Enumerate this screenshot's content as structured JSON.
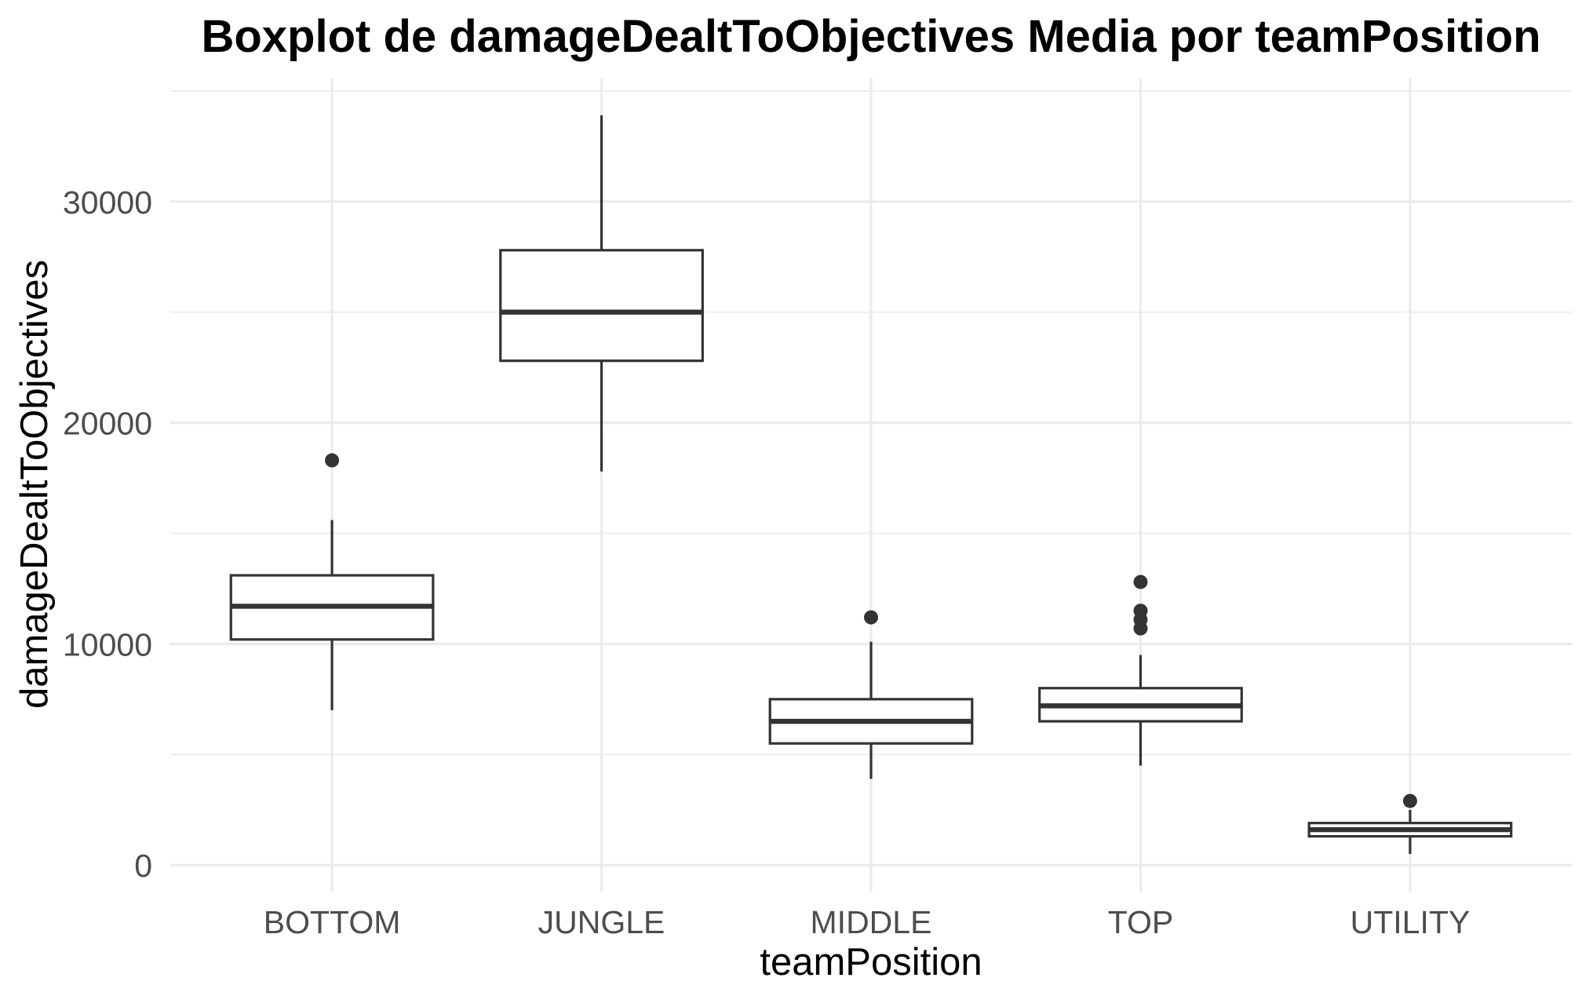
{
  "chart_data": {
    "type": "boxplot",
    "title": "Boxplot de damageDealtToObjectives Media por teamPosition",
    "xlabel": "teamPosition",
    "ylabel": "damageDealtToObjectives",
    "categories": [
      "BOTTOM",
      "JUNGLE",
      "MIDDLE",
      "TOP",
      "UTILITY"
    ],
    "boxes": [
      {
        "category": "BOTTOM",
        "whisker_low": 7000,
        "q1": 10200,
        "median": 11700,
        "q3": 13100,
        "whisker_high": 15600,
        "outliers": [
          18300
        ]
      },
      {
        "category": "JUNGLE",
        "whisker_low": 17800,
        "q1": 22800,
        "median": 25000,
        "q3": 27800,
        "whisker_high": 33900,
        "outliers": []
      },
      {
        "category": "MIDDLE",
        "whisker_low": 3900,
        "q1": 5500,
        "median": 6500,
        "q3": 7500,
        "whisker_high": 10100,
        "outliers": [
          11200
        ]
      },
      {
        "category": "TOP",
        "whisker_low": 4500,
        "q1": 6500,
        "median": 7200,
        "q3": 8000,
        "whisker_high": 9500,
        "outliers": [
          10700,
          11100,
          11500,
          12800
        ]
      },
      {
        "category": "UTILITY",
        "whisker_low": 500,
        "q1": 1300,
        "median": 1600,
        "q3": 1900,
        "whisker_high": 2500,
        "outliers": [
          2900
        ]
      }
    ],
    "yticks": [
      0,
      10000,
      20000,
      30000
    ],
    "ylim": [
      -1200,
      35600
    ],
    "grid": {
      "major": true,
      "minor": true
    },
    "legend": "none",
    "colors": {
      "background": "#ffffff",
      "grid": "#ebebeb",
      "box_stroke": "#333333",
      "box_fill": "#ffffff",
      "outlier": "#333333",
      "tick_label": "#4d4d4d",
      "text": "#000000"
    }
  }
}
